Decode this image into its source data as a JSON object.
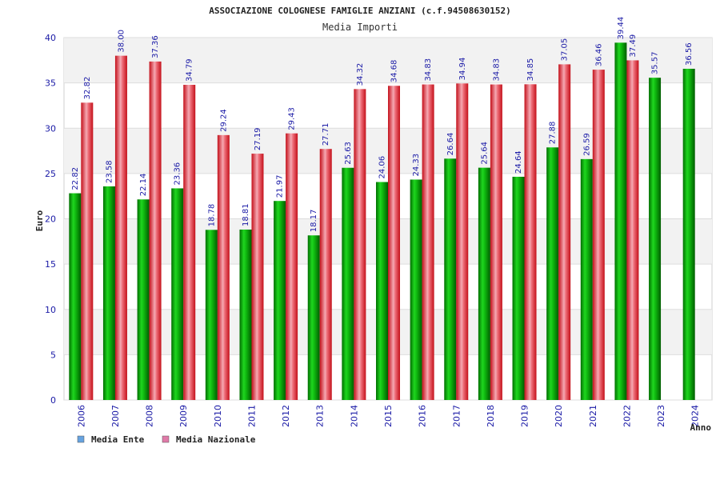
{
  "chart_data": {
    "type": "bar",
    "title": "ASSOCIAZIONE COLOGNESE FAMIGLIE ANZIANI (c.f.94508630152)",
    "subtitle": "Media Importi",
    "xlabel": "Anno",
    "ylabel": "Euro",
    "ylim": [
      0,
      40
    ],
    "yticks": [
      0,
      5,
      10,
      15,
      20,
      25,
      30,
      35,
      40
    ],
    "categories": [
      "2006",
      "2007",
      "2008",
      "2009",
      "2010",
      "2011",
      "2012",
      "2013",
      "2014",
      "2015",
      "2016",
      "2017",
      "2018",
      "2019",
      "2020",
      "2021",
      "2022",
      "2023",
      "2024"
    ],
    "series": [
      {
        "name": "Media Ente",
        "values": [
          22.82,
          23.58,
          22.14,
          23.36,
          18.78,
          18.81,
          21.97,
          18.17,
          25.63,
          24.06,
          24.33,
          26.64,
          25.64,
          24.64,
          27.88,
          26.59,
          39.44,
          35.57,
          36.56
        ],
        "labels": [
          "22.82",
          "23.58",
          "22.14",
          "23.36",
          "18.78",
          "18.81",
          "21.97",
          "18.17",
          "25.63",
          "24.06",
          "24.33",
          "26.64",
          "25.64",
          "24.64",
          "27.88",
          "26.59",
          "39.44",
          "35.57",
          "36.56"
        ],
        "color": "#00a800",
        "legend_color": "#66a3e0"
      },
      {
        "name": "Media Nazionale",
        "values": [
          32.82,
          38.0,
          37.36,
          34.79,
          29.24,
          27.19,
          29.43,
          27.71,
          34.32,
          34.68,
          34.83,
          34.94,
          34.83,
          34.85,
          37.05,
          36.46,
          37.49,
          null,
          null
        ],
        "labels": [
          "32.82",
          "38.00",
          "37.36",
          "34.79",
          "29.24",
          "27.19",
          "29.43",
          "27.71",
          "34.32",
          "34.68",
          "34.83",
          "34.94",
          "34.83",
          "34.85",
          "37.05",
          "36.46",
          "37.49",
          null,
          null
        ],
        "color": "#e8202a",
        "legend_color": "#e07aa8"
      }
    ],
    "legend_position": "bottom-left",
    "grid": true
  }
}
